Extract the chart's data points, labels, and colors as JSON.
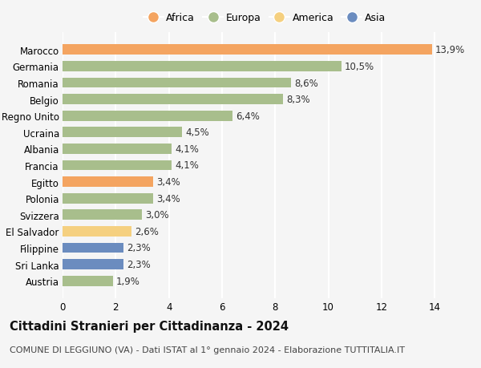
{
  "categories": [
    "Marocco",
    "Germania",
    "Romania",
    "Belgio",
    "Regno Unito",
    "Ucraina",
    "Albania",
    "Francia",
    "Egitto",
    "Polonia",
    "Svizzera",
    "El Salvador",
    "Filippine",
    "Sri Lanka",
    "Austria"
  ],
  "values": [
    13.9,
    10.5,
    8.6,
    8.3,
    6.4,
    4.5,
    4.1,
    4.1,
    3.4,
    3.4,
    3.0,
    2.6,
    2.3,
    2.3,
    1.9
  ],
  "labels": [
    "13,9%",
    "10,5%",
    "8,6%",
    "8,3%",
    "6,4%",
    "4,5%",
    "4,1%",
    "4,1%",
    "3,4%",
    "3,4%",
    "3,0%",
    "2,6%",
    "2,3%",
    "2,3%",
    "1,9%"
  ],
  "continents": [
    "Africa",
    "Europa",
    "Europa",
    "Europa",
    "Europa",
    "Europa",
    "Europa",
    "Europa",
    "Africa",
    "Europa",
    "Europa",
    "America",
    "Asia",
    "Asia",
    "Europa"
  ],
  "colors": {
    "Africa": "#F4A460",
    "Europa": "#A8BE8C",
    "America": "#F5D080",
    "Asia": "#6B8CBF"
  },
  "legend_order": [
    "Africa",
    "Europa",
    "America",
    "Asia"
  ],
  "legend_colors": {
    "Africa": "#F4A460",
    "Europa": "#A8BE8C",
    "America": "#F5D080",
    "Asia": "#6B8CBF"
  },
  "title": "Cittadini Stranieri per Cittadinanza - 2024",
  "subtitle": "COMUNE DI LEGGIUNO (VA) - Dati ISTAT al 1° gennaio 2024 - Elaborazione TUTTITALIA.IT",
  "xlim": [
    0,
    15.2
  ],
  "xticks": [
    0,
    2,
    4,
    6,
    8,
    10,
    12,
    14
  ],
  "background_color": "#f5f5f5",
  "grid_color": "#ffffff",
  "bar_height": 0.62,
  "label_fontsize": 8.5,
  "tick_fontsize": 8.5,
  "title_fontsize": 10.5,
  "subtitle_fontsize": 8.0
}
